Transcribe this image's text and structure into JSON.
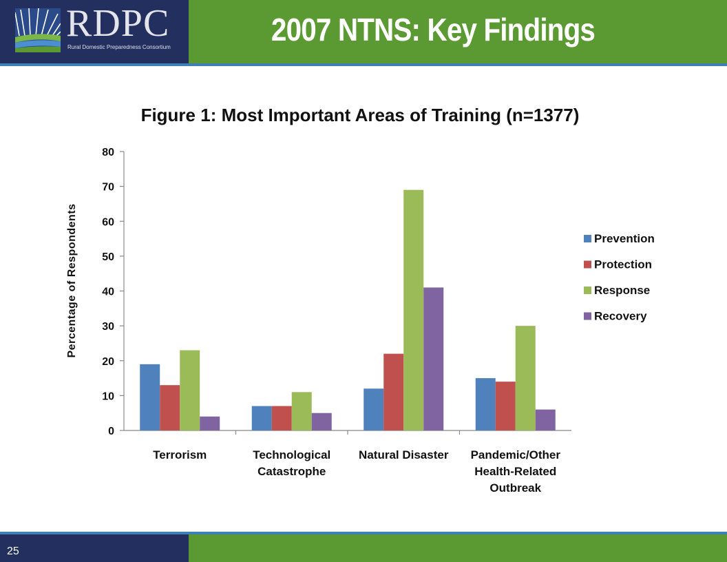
{
  "header": {
    "title": "2007 NTNS:  Key Findings",
    "logo_text": "RDPC",
    "logo_subtitle": "Rural Domestic Preparedness Consortium"
  },
  "footer": {
    "page_number": "25"
  },
  "colors": {
    "navy": "#232f5f",
    "green": "#5b9a32",
    "accent_line": "#3e7fb8",
    "series": [
      "#4f81bd",
      "#c0504d",
      "#9bbb59",
      "#8064a2"
    ]
  },
  "chart_data": {
    "type": "bar",
    "title": "Figure 1: Most Important Areas of Training (n=1377)",
    "xlabel": "",
    "ylabel": "Percentage of Respondents",
    "ylim": [
      0,
      80
    ],
    "yticks": [
      0,
      10,
      20,
      30,
      40,
      50,
      60,
      70,
      80
    ],
    "categories": [
      [
        "Terrorism"
      ],
      [
        "Technological",
        "Catastrophe"
      ],
      [
        "Natural Disaster"
      ],
      [
        "Pandemic/Other",
        "Health-Related",
        "Outbreak"
      ]
    ],
    "series": [
      {
        "name": "Prevention",
        "values": [
          19,
          7,
          12,
          15
        ]
      },
      {
        "name": "Protection",
        "values": [
          13,
          7,
          22,
          14
        ]
      },
      {
        "name": "Response",
        "values": [
          23,
          11,
          69,
          30
        ]
      },
      {
        "name": "Recovery",
        "values": [
          4,
          5,
          41,
          6
        ]
      }
    ],
    "legend_position": "right",
    "grid": false
  }
}
